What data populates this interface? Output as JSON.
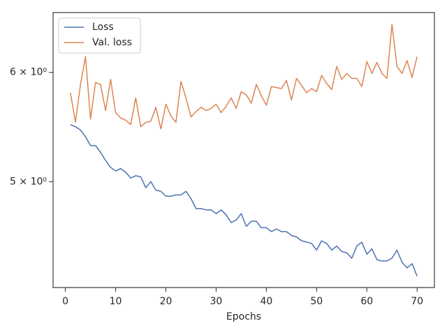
{
  "chart_data": {
    "type": "line",
    "xlabel": "Epochs",
    "x": [
      1,
      2,
      3,
      4,
      5,
      6,
      7,
      8,
      9,
      10,
      11,
      12,
      13,
      14,
      15,
      16,
      17,
      18,
      19,
      20,
      21,
      22,
      23,
      24,
      25,
      26,
      27,
      28,
      29,
      30,
      31,
      32,
      33,
      34,
      35,
      36,
      37,
      38,
      39,
      40,
      41,
      42,
      43,
      44,
      45,
      46,
      47,
      48,
      49,
      50,
      51,
      52,
      53,
      54,
      55,
      56,
      57,
      58,
      59,
      60,
      61,
      62,
      63,
      64,
      65,
      66,
      67,
      68,
      69,
      70
    ],
    "series": [
      {
        "name": "Loss",
        "color": "#4c72b0",
        "values": [
          5.5,
          5.48,
          5.45,
          5.39,
          5.31,
          5.31,
          5.25,
          5.18,
          5.12,
          5.09,
          5.11,
          5.08,
          5.03,
          5.05,
          5.04,
          4.95,
          5.0,
          4.93,
          4.92,
          4.88,
          4.88,
          4.89,
          4.89,
          4.92,
          4.86,
          4.78,
          4.78,
          4.77,
          4.77,
          4.74,
          4.77,
          4.73,
          4.67,
          4.69,
          4.74,
          4.64,
          4.68,
          4.68,
          4.63,
          4.63,
          4.6,
          4.62,
          4.6,
          4.6,
          4.57,
          4.56,
          4.53,
          4.52,
          4.51,
          4.46,
          4.53,
          4.51,
          4.46,
          4.49,
          4.45,
          4.44,
          4.4,
          4.49,
          4.52,
          4.43,
          4.47,
          4.39,
          4.38,
          4.38,
          4.4,
          4.46,
          4.37,
          4.33,
          4.36,
          4.27
        ]
      },
      {
        "name": "Val. loss",
        "color": "#dd8452",
        "values": [
          5.8,
          5.52,
          5.88,
          6.16,
          5.55,
          5.9,
          5.88,
          5.63,
          5.93,
          5.61,
          5.56,
          5.54,
          5.5,
          5.75,
          5.48,
          5.52,
          5.53,
          5.66,
          5.46,
          5.69,
          5.58,
          5.52,
          5.91,
          5.75,
          5.57,
          5.62,
          5.66,
          5.63,
          5.65,
          5.69,
          5.61,
          5.67,
          5.75,
          5.65,
          5.81,
          5.78,
          5.7,
          5.88,
          5.77,
          5.68,
          5.86,
          5.85,
          5.84,
          5.92,
          5.73,
          5.94,
          5.87,
          5.8,
          5.84,
          5.81,
          5.97,
          5.89,
          5.83,
          6.06,
          5.93,
          5.99,
          5.94,
          5.94,
          5.86,
          6.11,
          5.99,
          6.1,
          5.99,
          5.94,
          6.5,
          6.06,
          5.99,
          6.12,
          5.95,
          6.16
        ]
      }
    ],
    "xlim": [
      -2.45,
      73.45
    ],
    "xticks": [
      0,
      10,
      20,
      30,
      40,
      50,
      60,
      70
    ],
    "ylim": [
      4.19,
      6.63
    ],
    "log_y": true,
    "yticks": [
      {
        "value": 5,
        "label": "5 × 10⁰"
      },
      {
        "value": 6,
        "label": "6 × 10⁰"
      }
    ],
    "grid": false,
    "legend": "upper left"
  }
}
